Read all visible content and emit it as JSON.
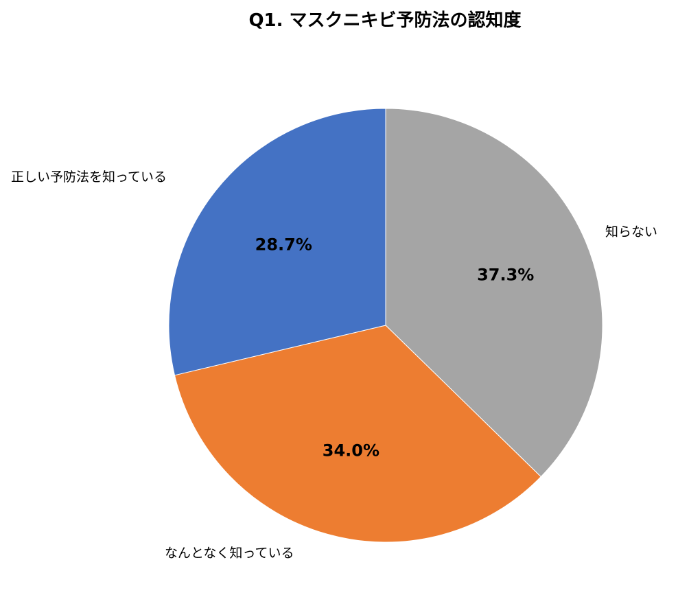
{
  "chart_data": {
    "type": "pie",
    "title": "Q1. マスクニキビ予防法の認知度",
    "categories": [
      "知らない",
      "なんとなく知っている",
      "正しい予防法を知っている"
    ],
    "values": [
      37.3,
      34.0,
      28.7
    ],
    "value_labels": [
      "37.3%",
      "34.0%",
      "28.7%"
    ],
    "colors": [
      "#A5A5A5",
      "#ED7D31",
      "#4472C4"
    ],
    "start_angle": "12 o'clock",
    "direction": "clockwise",
    "legend": "none"
  }
}
